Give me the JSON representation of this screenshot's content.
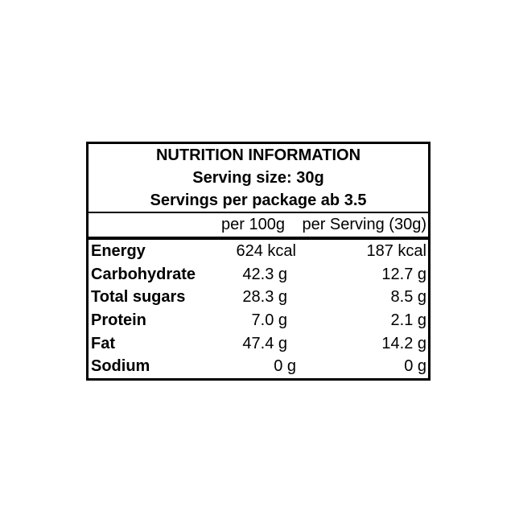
{
  "table": {
    "title": "NUTRITION INFORMATION",
    "serving_size_line": "Serving size: 30g",
    "servings_per_package_line": "Servings per package ab 3.5",
    "columns": {
      "per_100g": "per 100g",
      "per_serving": "per Serving (30g)"
    },
    "rows": [
      {
        "label": "Energy",
        "per_100g": "624 kcal",
        "per_serving": "187 kcal"
      },
      {
        "label": "Carbohydrate",
        "per_100g": "42.3 g",
        "per_serving": "12.7 g"
      },
      {
        "label": "Total sugars",
        "per_100g": "28.3 g",
        "per_serving": "8.5 g"
      },
      {
        "label": "Protein",
        "per_100g": "7.0 g",
        "per_serving": "2.1 g"
      },
      {
        "label": "Fat",
        "per_100g": "47.4 g",
        "per_serving": "14.2 g"
      },
      {
        "label": "Sodium",
        "per_100g": "0 g",
        "per_serving": "0 g"
      }
    ],
    "colors": {
      "border": "#000000",
      "text": "#000000",
      "background": "#ffffff"
    }
  }
}
